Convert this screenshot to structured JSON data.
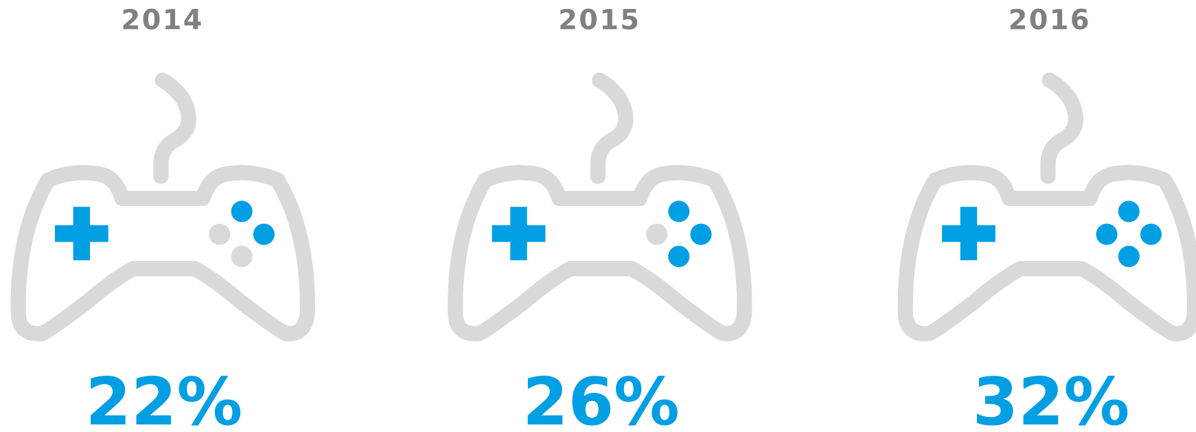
{
  "panels": [
    {
      "year": "2014",
      "share": "22%"
    },
    {
      "year": "2015",
      "share": "26%"
    },
    {
      "year": "2016",
      "share": "32%"
    }
  ]
}
